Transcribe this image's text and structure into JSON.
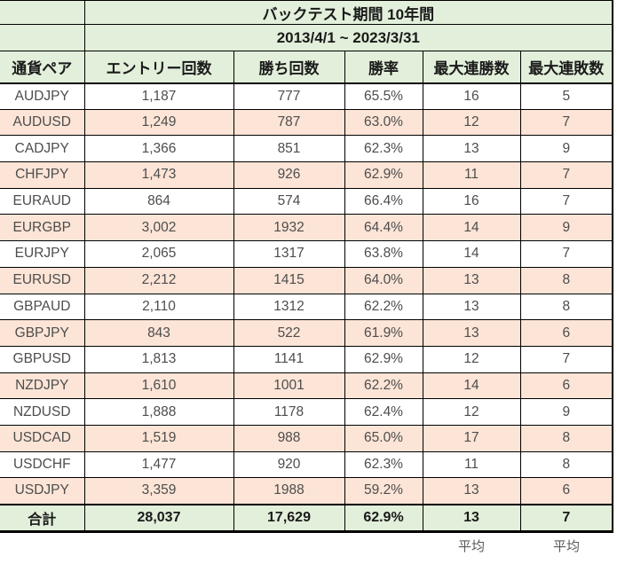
{
  "title": {
    "line1": "バックテスト期間 10年間",
    "line2": "2013/4/1 ~ 2023/3/31"
  },
  "columns": [
    "通貨ペア",
    "エントリー回数",
    "勝ち回数",
    "勝率",
    "最大連勝数",
    "最大連敗数"
  ],
  "rows": [
    {
      "pair": "AUDJPY",
      "entries": "1,187",
      "wins": "777",
      "win_rate": "65.5%",
      "max_win_streak": "16",
      "max_lose_streak": "5"
    },
    {
      "pair": "AUDUSD",
      "entries": "1,249",
      "wins": "787",
      "win_rate": "63.0%",
      "max_win_streak": "12",
      "max_lose_streak": "7"
    },
    {
      "pair": "CADJPY",
      "entries": "1,366",
      "wins": "851",
      "win_rate": "62.3%",
      "max_win_streak": "13",
      "max_lose_streak": "9"
    },
    {
      "pair": "CHFJPY",
      "entries": "1,473",
      "wins": "926",
      "win_rate": "62.9%",
      "max_win_streak": "11",
      "max_lose_streak": "7"
    },
    {
      "pair": "EURAUD",
      "entries": "864",
      "wins": "574",
      "win_rate": "66.4%",
      "max_win_streak": "16",
      "max_lose_streak": "7"
    },
    {
      "pair": "EURGBP",
      "entries": "3,002",
      "wins": "1932",
      "win_rate": "64.4%",
      "max_win_streak": "14",
      "max_lose_streak": "9"
    },
    {
      "pair": "EURJPY",
      "entries": "2,065",
      "wins": "1317",
      "win_rate": "63.8%",
      "max_win_streak": "14",
      "max_lose_streak": "7"
    },
    {
      "pair": "EURUSD",
      "entries": "2,212",
      "wins": "1415",
      "win_rate": "64.0%",
      "max_win_streak": "13",
      "max_lose_streak": "8"
    },
    {
      "pair": "GBPAUD",
      "entries": "2,110",
      "wins": "1312",
      "win_rate": "62.2%",
      "max_win_streak": "13",
      "max_lose_streak": "8"
    },
    {
      "pair": "GBPJPY",
      "entries": "843",
      "wins": "522",
      "win_rate": "61.9%",
      "max_win_streak": "13",
      "max_lose_streak": "6"
    },
    {
      "pair": "GBPUSD",
      "entries": "1,813",
      "wins": "1141",
      "win_rate": "62.9%",
      "max_win_streak": "12",
      "max_lose_streak": "7"
    },
    {
      "pair": "NZDJPY",
      "entries": "1,610",
      "wins": "1001",
      "win_rate": "62.2%",
      "max_win_streak": "14",
      "max_lose_streak": "6"
    },
    {
      "pair": "NZDUSD",
      "entries": "1,888",
      "wins": "1178",
      "win_rate": "62.4%",
      "max_win_streak": "12",
      "max_lose_streak": "9"
    },
    {
      "pair": "USDCAD",
      "entries": "1,519",
      "wins": "988",
      "win_rate": "65.0%",
      "max_win_streak": "17",
      "max_lose_streak": "8"
    },
    {
      "pair": "USDCHF",
      "entries": "1,477",
      "wins": "920",
      "win_rate": "62.3%",
      "max_win_streak": "11",
      "max_lose_streak": "8"
    },
    {
      "pair": "USDJPY",
      "entries": "3,359",
      "wins": "1988",
      "win_rate": "59.2%",
      "max_win_streak": "13",
      "max_lose_streak": "6"
    }
  ],
  "total": {
    "label": "合計",
    "entries": "28,037",
    "wins": "17,629",
    "win_rate": "62.9%",
    "max_win_streak": "13",
    "max_lose_streak": "7"
  },
  "footer": {
    "avg_label_wins": "平均",
    "avg_label_losses": "平均"
  },
  "colors": {
    "header_bg": "#e2efda",
    "alt_row_bg": "#fce4d6",
    "row_bg": "#ffffff",
    "total_bg": "#e2efda",
    "border": "#000000",
    "data_text": "#4d4d4d",
    "header_text": "#1a1a1a",
    "muted_text": "#595959"
  }
}
